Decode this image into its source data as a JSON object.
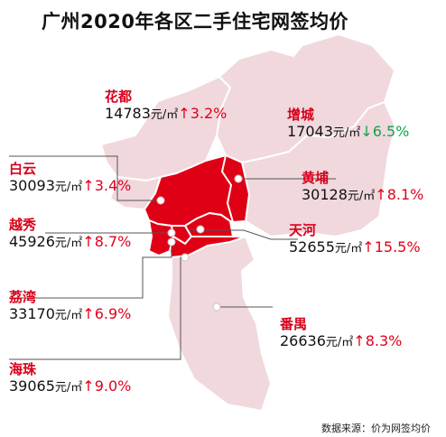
{
  "title": "广州2020年各区二手住宅网签均价",
  "source": "数据来源：价为网签均价",
  "unit": "元/㎡",
  "colors": {
    "highlight_district": "#e00015",
    "outer_district": "#f0d8dd",
    "border": "#ffffff",
    "district_name": "#d7001a",
    "change_up": "#e0001b",
    "change_down": "#11a44a"
  },
  "districts": [
    {
      "name": "花都",
      "price": "14783",
      "arrow": "↑",
      "change": "3.2%",
      "direction": "up"
    },
    {
      "name": "增城",
      "price": "17043",
      "arrow": "↓",
      "change": "6.5%",
      "direction": "down"
    },
    {
      "name": "白云",
      "price": "30093",
      "arrow": "↑",
      "change": "3.4%",
      "direction": "up"
    },
    {
      "name": "黄埔",
      "price": "30128",
      "arrow": "↑",
      "change": "8.1%",
      "direction": "up"
    },
    {
      "name": "越秀",
      "price": "45926",
      "arrow": "↑",
      "change": "8.7%",
      "direction": "up"
    },
    {
      "name": "天河",
      "price": "52655",
      "arrow": "↑",
      "change": "15.5%",
      "direction": "up"
    },
    {
      "name": "荔湾",
      "price": "33170",
      "arrow": "↑",
      "change": "6.9%",
      "direction": "up"
    },
    {
      "name": "番禺",
      "price": "26636",
      "arrow": "↑",
      "change": "8.3%",
      "direction": "up"
    },
    {
      "name": "海珠",
      "price": "39065",
      "arrow": "↑",
      "change": "9.0%",
      "direction": "up"
    }
  ]
}
